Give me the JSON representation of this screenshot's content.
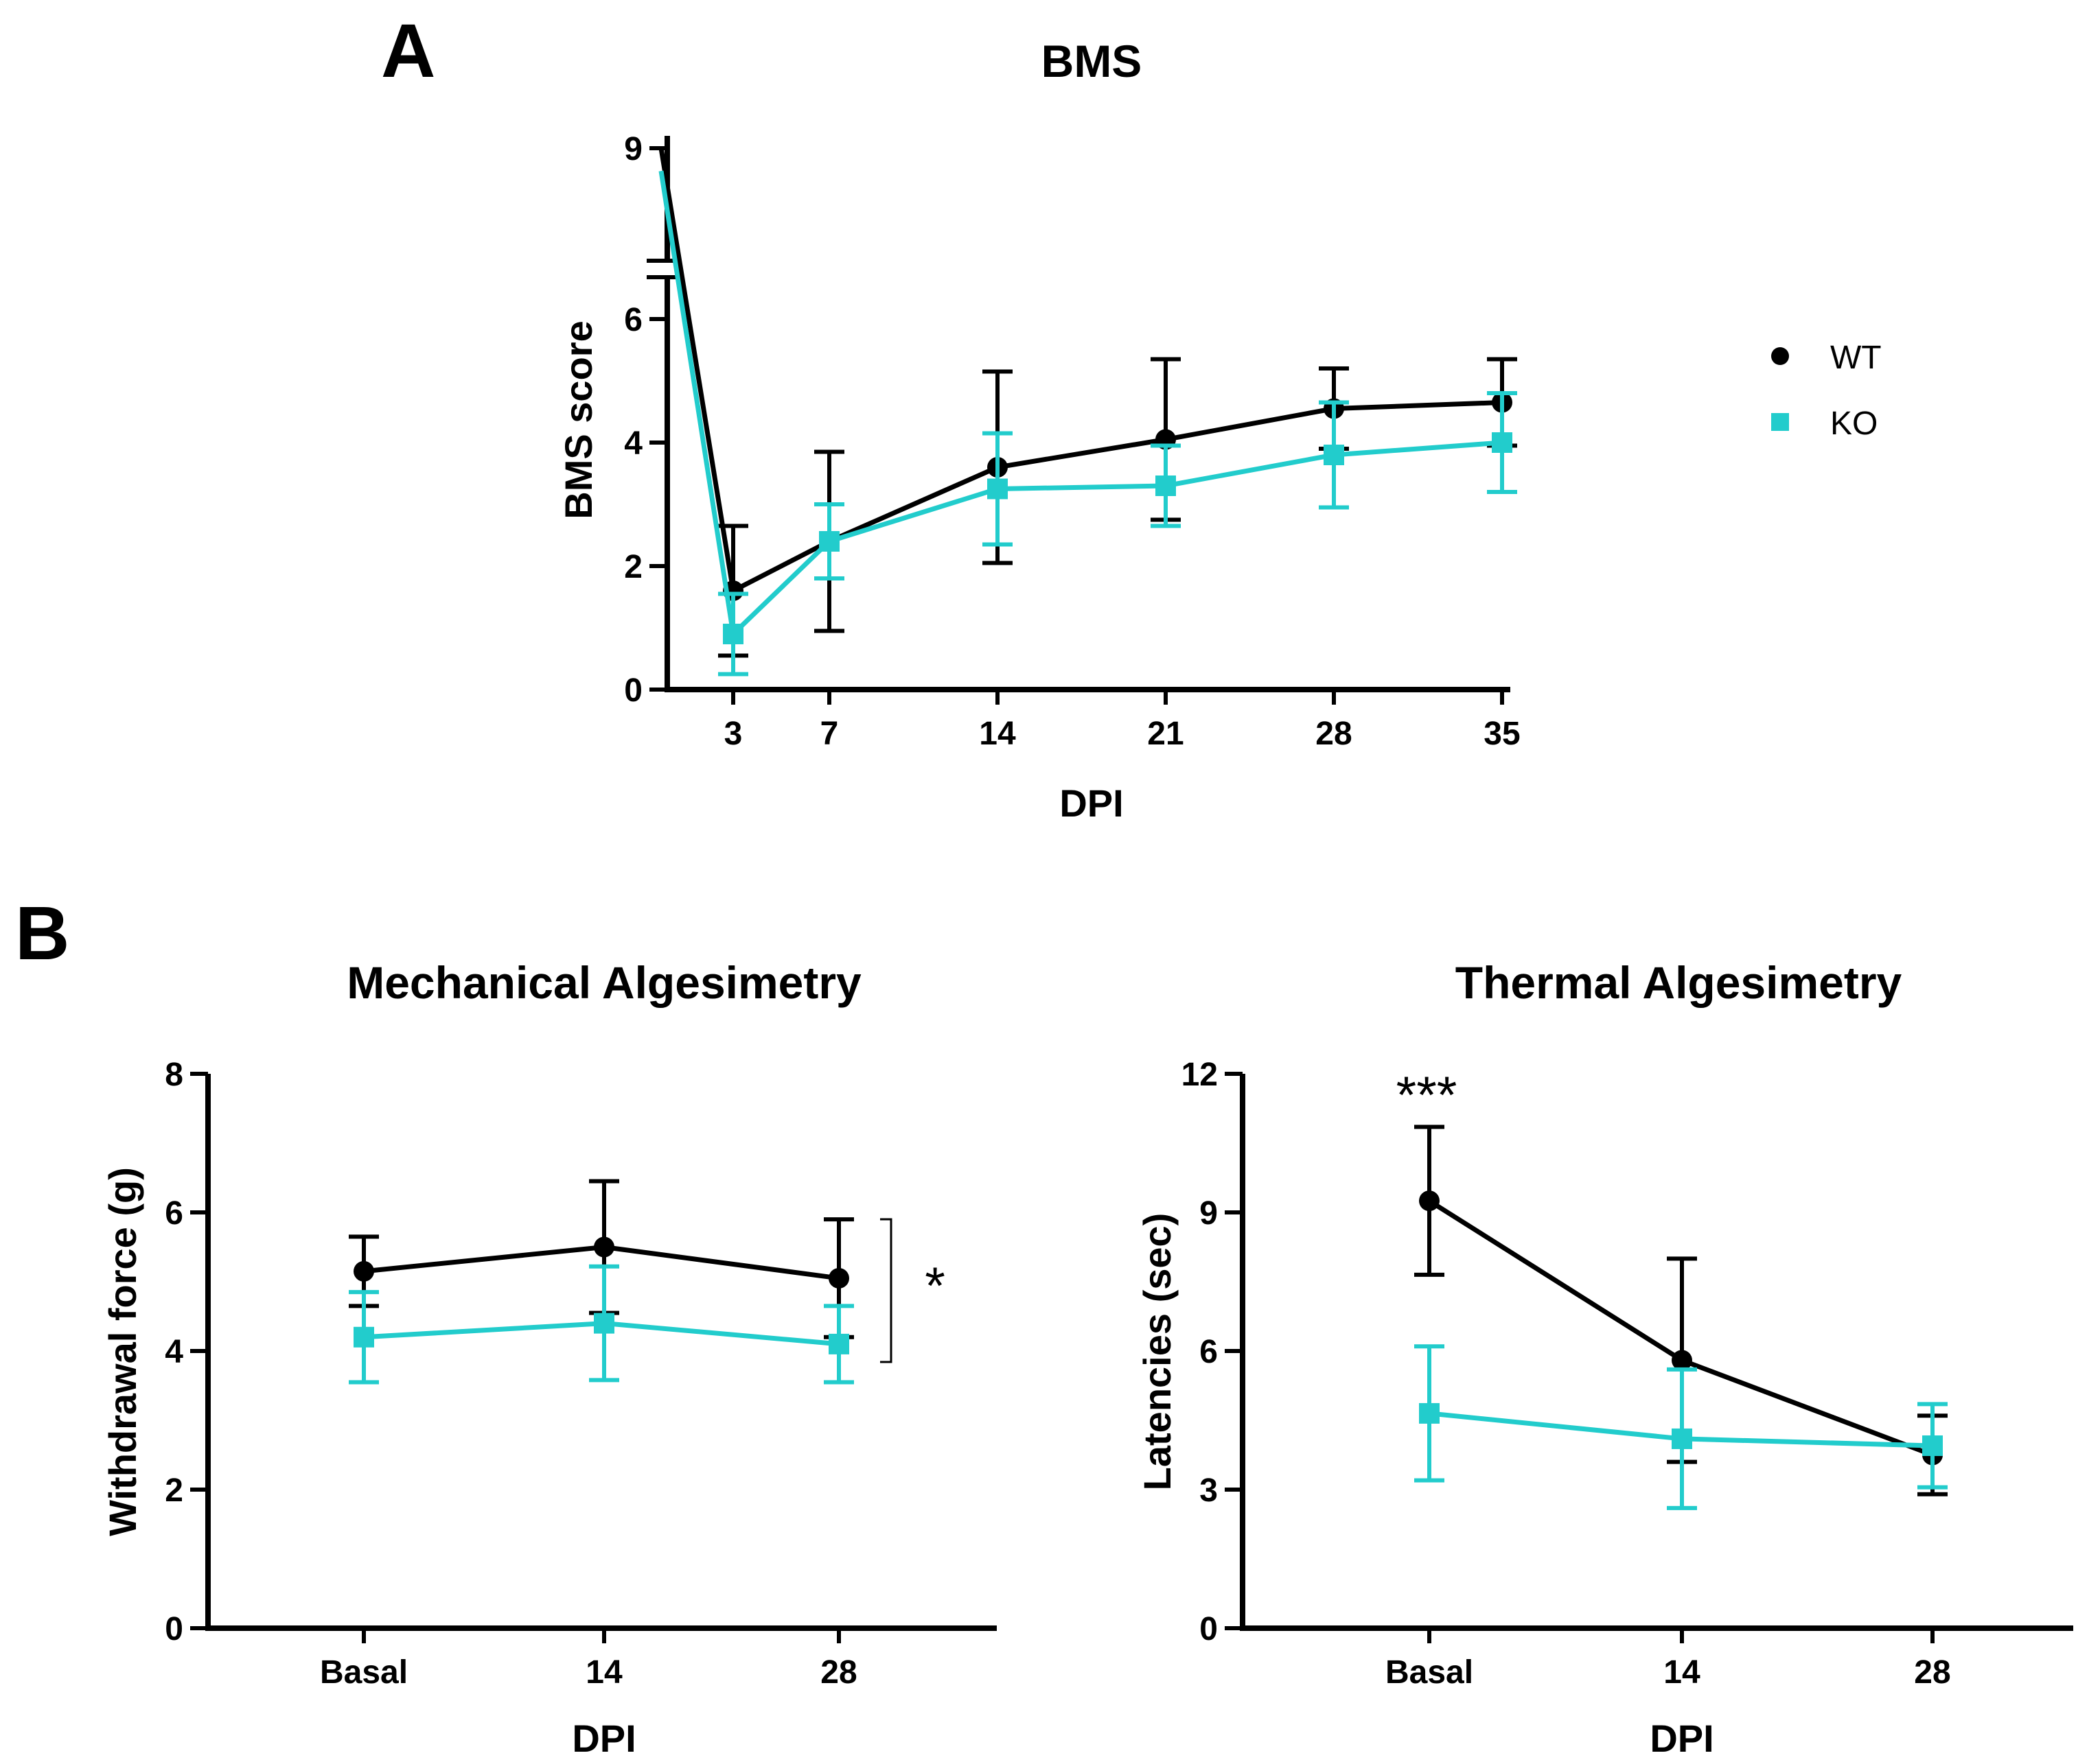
{
  "figure": {
    "panel_labels": [
      "A",
      "B"
    ],
    "legend": [
      {
        "name": "WT",
        "color": "#000000",
        "marker": "circle"
      },
      {
        "name": "KO",
        "color": "#22CCCC",
        "marker": "square"
      }
    ]
  },
  "chart_data": [
    {
      "type": "line",
      "title": "BMS",
      "xlabel": "DPI",
      "ylabel": "BMS score",
      "x": [
        0,
        3,
        7,
        14,
        21,
        28,
        35
      ],
      "xtick_labels": [
        "",
        "3",
        "7",
        "14",
        "21",
        "28",
        "35"
      ],
      "yticks": [
        0,
        2,
        4,
        6,
        9
      ],
      "ylim": [
        0,
        9
      ],
      "axis_break": true,
      "series": [
        {
          "name": "WT",
          "color": "#000000",
          "marker": "circle",
          "values": [
            9.0,
            1.6,
            2.4,
            3.6,
            4.05,
            4.55,
            4.65
          ],
          "errors": [
            0.0,
            1.05,
            1.45,
            1.55,
            1.3,
            0.65,
            0.7
          ]
        },
        {
          "name": "KO",
          "color": "#22CCCC",
          "marker": "square",
          "values": [
            8.6,
            0.9,
            2.4,
            3.25,
            3.3,
            3.8,
            4.0
          ],
          "errors": [
            0.0,
            0.65,
            0.6,
            0.9,
            0.65,
            0.85,
            0.8
          ]
        }
      ]
    },
    {
      "type": "line",
      "title": "Mechanical  Algesimetry",
      "xlabel": "DPI",
      "ylabel": "Withdrawal force (g)",
      "categories": [
        "Basal",
        "14",
        "28"
      ],
      "yticks": [
        0,
        2,
        4,
        6,
        8
      ],
      "ylim": [
        0,
        8
      ],
      "annotation": "*",
      "series": [
        {
          "name": "WT",
          "color": "#000000",
          "marker": "circle",
          "values": [
            5.15,
            5.5,
            5.05
          ],
          "errors": [
            0.5,
            0.95,
            0.85
          ]
        },
        {
          "name": "KO",
          "color": "#22CCCC",
          "marker": "square",
          "values": [
            4.2,
            4.4,
            4.1
          ],
          "errors": [
            0.65,
            0.82,
            0.55
          ]
        }
      ]
    },
    {
      "type": "line",
      "title": "Thermal Algesimetry",
      "xlabel": "DPI",
      "ylabel": "Latencies (sec)",
      "categories": [
        "Basal",
        "14",
        "28"
      ],
      "yticks": [
        0,
        3,
        6,
        9,
        12
      ],
      "ylim": [
        0,
        12
      ],
      "annotation": "***",
      "series": [
        {
          "name": "WT",
          "color": "#000000",
          "marker": "circle",
          "values": [
            9.25,
            5.8,
            3.75
          ],
          "errors": [
            1.6,
            2.2,
            0.85
          ]
        },
        {
          "name": "KO",
          "color": "#22CCCC",
          "marker": "square",
          "values": [
            4.65,
            4.1,
            3.95
          ],
          "errors": [
            1.45,
            1.5,
            0.9
          ]
        }
      ]
    }
  ]
}
